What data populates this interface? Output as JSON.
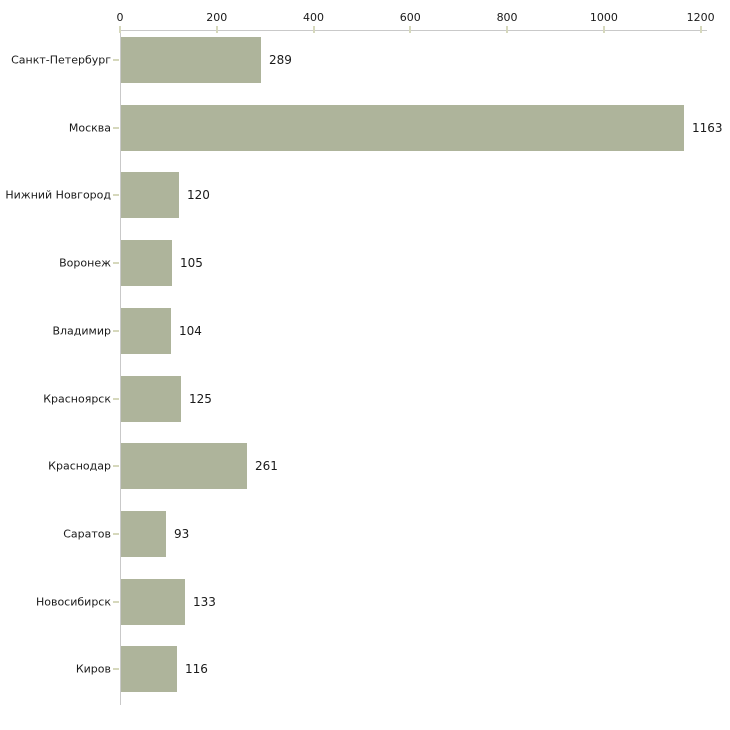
{
  "chart_data": {
    "type": "bar",
    "orientation": "horizontal",
    "title": "",
    "xlabel": "",
    "ylabel": "",
    "categories": [
      "Санкт-Петербург",
      "Москва",
      "Нижний Новгород",
      "Воронеж",
      "Владимир",
      "Красноярск",
      "Краснодар",
      "Саратов",
      "Новосибирск",
      "Киров"
    ],
    "values": [
      289,
      1163,
      120,
      105,
      104,
      125,
      261,
      93,
      133,
      116
    ],
    "value_labels": [
      "289",
      "1163",
      "120",
      "105",
      "104",
      "125",
      "261",
      "93",
      "133",
      "116"
    ],
    "x_ticks": [
      0,
      200,
      400,
      600,
      800,
      1000,
      1200
    ],
    "x_tick_labels": [
      "0",
      "200",
      "400",
      "600",
      "800",
      "1000",
      "1200"
    ],
    "xlim": [
      0,
      1200
    ],
    "grid": false,
    "legend": null,
    "colors": {
      "bar": "#aeb49b",
      "axis": "#c9c9c9",
      "tick": "#d6d8bc",
      "text": "#1a1a1a",
      "background": "#ffffff"
    }
  }
}
